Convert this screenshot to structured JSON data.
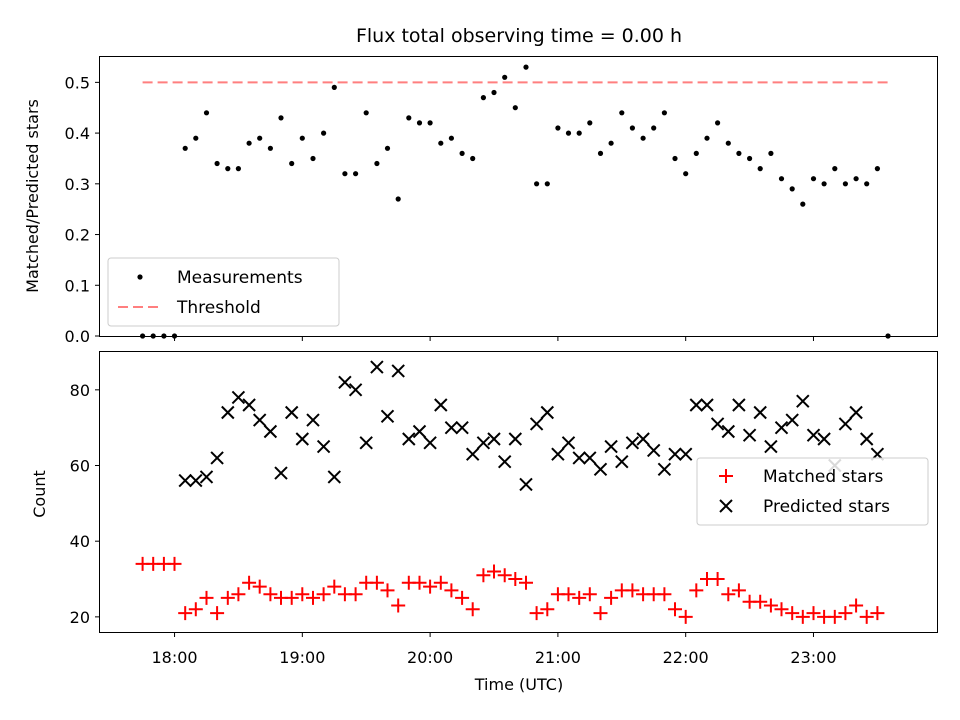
{
  "colors": {
    "measurement": "#000000",
    "threshold": "#ff7f7f",
    "matched": "#ff0000",
    "predicted": "#000000"
  },
  "chart_data": [
    {
      "type": "scatter",
      "title": "Flux total observing time = 0.00 h",
      "xlabel": "",
      "ylabel": "Matched/Predicted stars",
      "xlim": [
        "17:25",
        "23:58"
      ],
      "ylim": [
        0,
        0.55
      ],
      "yticks": [
        0.0,
        0.1,
        0.2,
        0.3,
        0.4,
        0.5
      ],
      "ytick_labels": [
        "0.0",
        "0.1",
        "0.2",
        "0.3",
        "0.4",
        "0.5"
      ],
      "legend": "lower-left",
      "grid": false,
      "series": [
        {
          "name": "Measurements",
          "marker": "dot",
          "x": [
            "17:45",
            "17:50",
            "17:55",
            "18:00",
            "18:05",
            "18:10",
            "18:15",
            "18:20",
            "18:25",
            "18:30",
            "18:35",
            "18:40",
            "18:45",
            "18:50",
            "18:55",
            "19:00",
            "19:05",
            "19:10",
            "19:15",
            "19:20",
            "19:25",
            "19:30",
            "19:35",
            "19:40",
            "19:45",
            "19:50",
            "19:55",
            "20:00",
            "20:05",
            "20:10",
            "20:15",
            "20:20",
            "20:25",
            "20:30",
            "20:35",
            "20:40",
            "20:45",
            "20:50",
            "20:55",
            "21:00",
            "21:05",
            "21:10",
            "21:15",
            "21:20",
            "21:25",
            "21:30",
            "21:35",
            "21:40",
            "21:45",
            "21:50",
            "21:55",
            "22:00",
            "22:05",
            "22:10",
            "22:15",
            "22:20",
            "22:25",
            "22:30",
            "22:35",
            "22:40",
            "22:45",
            "22:50",
            "22:55",
            "23:00",
            "23:05",
            "23:10",
            "23:15",
            "23:20",
            "23:25",
            "23:30"
          ],
          "y": [
            0.0,
            0.0,
            0.0,
            0.0,
            0.37,
            0.39,
            0.44,
            0.34,
            0.33,
            0.33,
            0.38,
            0.39,
            0.37,
            0.43,
            0.34,
            0.39,
            0.35,
            0.4,
            0.49,
            0.32,
            0.32,
            0.44,
            0.34,
            0.37,
            0.27,
            0.43,
            0.42,
            0.42,
            0.38,
            0.39,
            0.36,
            0.35,
            0.47,
            0.48,
            0.51,
            0.45,
            0.53,
            0.3,
            0.3,
            0.41,
            0.4,
            0.4,
            0.42,
            0.36,
            0.38,
            0.44,
            0.41,
            0.39,
            0.41,
            0.44,
            0.35,
            0.32,
            0.36,
            0.39,
            0.42,
            0.38,
            0.36,
            0.35,
            0.33,
            0.36,
            0.31,
            0.29,
            0.26,
            0.31,
            0.3,
            0.33,
            0.3,
            0.31,
            0.3,
            0.33
          ]
        },
        {
          "name": "Measurements",
          "marker": "dot",
          "x": [
            "23:35"
          ],
          "y": [
            0.0
          ]
        },
        {
          "name": "Threshold",
          "marker": "dashed-line",
          "x": [
            "17:45",
            "23:35"
          ],
          "y": [
            0.5,
            0.5
          ]
        }
      ]
    },
    {
      "type": "scatter",
      "title": "",
      "xlabel": "Time (UTC)",
      "ylabel": "Count",
      "xlim": [
        "17:25",
        "23:58"
      ],
      "ylim": [
        16,
        90
      ],
      "xticks": [
        "18:00",
        "19:00",
        "20:00",
        "21:00",
        "22:00",
        "23:00"
      ],
      "yticks": [
        20,
        40,
        60,
        80
      ],
      "ytick_labels": [
        "20",
        "40",
        "60",
        "80"
      ],
      "legend": "center-right",
      "grid": false,
      "series": [
        {
          "name": "Matched stars",
          "marker": "plus",
          "x": [
            "17:45",
            "17:50",
            "17:55",
            "18:00",
            "18:05",
            "18:10",
            "18:15",
            "18:20",
            "18:25",
            "18:30",
            "18:35",
            "18:40",
            "18:45",
            "18:50",
            "18:55",
            "19:00",
            "19:05",
            "19:10",
            "19:15",
            "19:20",
            "19:25",
            "19:30",
            "19:35",
            "19:40",
            "19:45",
            "19:50",
            "19:55",
            "20:00",
            "20:05",
            "20:10",
            "20:15",
            "20:20",
            "20:25",
            "20:30",
            "20:35",
            "20:40",
            "20:45",
            "20:50",
            "20:55",
            "21:00",
            "21:05",
            "21:10",
            "21:15",
            "21:20",
            "21:25",
            "21:30",
            "21:35",
            "21:40",
            "21:45",
            "21:50",
            "21:55",
            "22:00",
            "22:05",
            "22:10",
            "22:15",
            "22:20",
            "22:25",
            "22:30",
            "22:35",
            "22:40",
            "22:45",
            "22:50",
            "22:55",
            "23:00",
            "23:05",
            "23:10",
            "23:15",
            "23:20",
            "23:25",
            "23:30"
          ],
          "y": [
            34,
            34,
            34,
            34,
            21,
            22,
            25,
            21,
            25,
            26,
            29,
            28,
            26,
            25,
            25,
            26,
            25,
            26,
            28,
            26,
            26,
            29,
            29,
            27,
            23,
            29,
            29,
            28,
            29,
            27,
            25,
            22,
            31,
            32,
            31,
            30,
            29,
            21,
            22,
            26,
            26,
            25,
            26,
            21,
            25,
            27,
            27,
            26,
            26,
            26,
            22,
            20,
            27,
            30,
            30,
            26,
            27,
            24,
            24,
            23,
            22,
            21,
            20,
            21,
            20,
            20,
            21,
            23,
            20,
            21
          ]
        },
        {
          "name": "Predicted stars",
          "marker": "x",
          "x": [
            "18:05",
            "18:10",
            "18:15",
            "18:20",
            "18:25",
            "18:30",
            "18:35",
            "18:40",
            "18:45",
            "18:50",
            "18:55",
            "19:00",
            "19:05",
            "19:10",
            "19:15",
            "19:20",
            "19:25",
            "19:30",
            "19:35",
            "19:40",
            "19:45",
            "19:50",
            "19:55",
            "20:00",
            "20:05",
            "20:10",
            "20:15",
            "20:20",
            "20:25",
            "20:30",
            "20:35",
            "20:40",
            "20:45",
            "20:50",
            "20:55",
            "21:00",
            "21:05",
            "21:10",
            "21:15",
            "21:20",
            "21:25",
            "21:30",
            "21:35",
            "21:40",
            "21:45",
            "21:50",
            "21:55",
            "22:00",
            "22:05",
            "22:10",
            "22:15",
            "22:20",
            "22:25",
            "22:30",
            "22:35",
            "22:40",
            "22:45",
            "22:50",
            "22:55",
            "23:00",
            "23:05",
            "23:10",
            "23:15",
            "23:20",
            "23:25",
            "23:30"
          ],
          "y": [
            56,
            56,
            57,
            62,
            74,
            78,
            76,
            72,
            69,
            58,
            74,
            67,
            72,
            65,
            57,
            82,
            80,
            66,
            86,
            73,
            85,
            67,
            69,
            66,
            76,
            70,
            70,
            63,
            66,
            67,
            61,
            67,
            55,
            71,
            74,
            63,
            66,
            62,
            62,
            59,
            65,
            61,
            66,
            67,
            64,
            59,
            63,
            63,
            76,
            76,
            71,
            69,
            76,
            68,
            74,
            65,
            70,
            72,
            77,
            68,
            67,
            60,
            71,
            74,
            67,
            63
          ]
        }
      ]
    }
  ]
}
